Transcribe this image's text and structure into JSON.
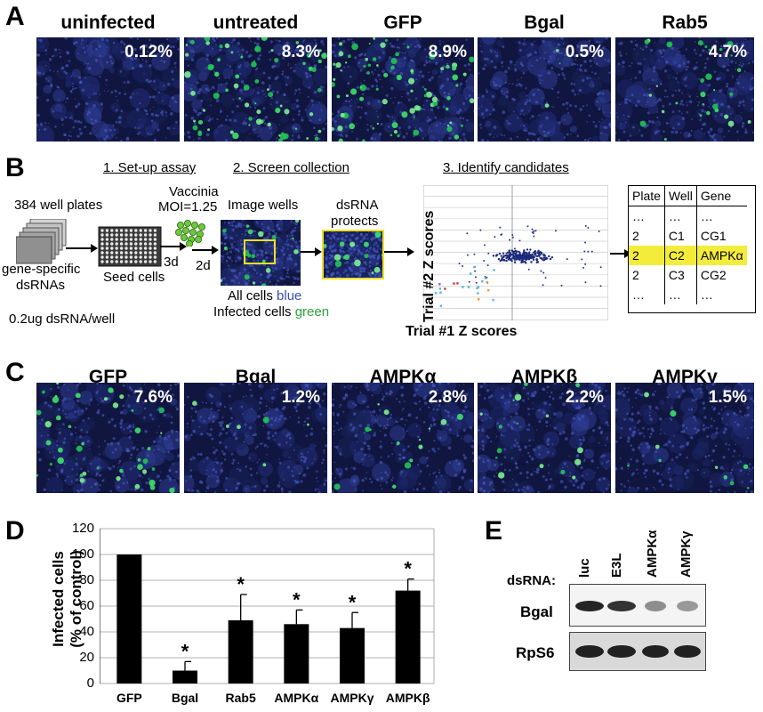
{
  "panels": {
    "A": {
      "label": "A",
      "tiles": [
        {
          "title": "uninfected",
          "pct": "0.12%"
        },
        {
          "title": "untreated",
          "pct": "8.3%"
        },
        {
          "title": "GFP",
          "pct": "8.9%"
        },
        {
          "title": "Bgal",
          "pct": "0.5%"
        },
        {
          "title": "Rab5",
          "pct": "4.7%"
        }
      ]
    },
    "B": {
      "label": "B",
      "step1": "1. Set-up assay",
      "step2": "2. Screen collection",
      "step3": "3. Identify candidates",
      "plates": "384 well plates",
      "gene_specific": "gene-specific",
      "dsrnas": "dsRNAs",
      "dose": "0.2ug dsRNA/well",
      "seed": "Seed cells",
      "vaccinia": "Vaccinia",
      "moi": "MOI=1.25",
      "d3": "3d",
      "d2": "2d",
      "image_wells": "Image wells",
      "all_cells_text": "All cells ",
      "blue_word": "blue",
      "infected_text": "Infected cells ",
      "green_word": "green",
      "dsrna": "dsRNA",
      "protects": "protects",
      "scatter_xlabel": "Trial #1 Z scores",
      "scatter_ylabel": "Trial #2 Z scores",
      "table": {
        "headers": [
          "Plate",
          "Well",
          "Gene"
        ],
        "rows": [
          [
            "…",
            "…",
            "…"
          ],
          [
            "2",
            "C1",
            "CG1"
          ],
          [
            "2",
            "C2",
            "AMPKα"
          ],
          [
            "2",
            "C3",
            "CG2"
          ],
          [
            "…",
            "…",
            "…"
          ]
        ]
      }
    },
    "C": {
      "label": "C",
      "tiles": [
        {
          "title": "GFP",
          "pct": "7.6%"
        },
        {
          "title": "Bgal",
          "pct": "1.2%"
        },
        {
          "title": "AMPKα",
          "pct": "2.8%"
        },
        {
          "title": "AMPKβ",
          "pct": "2.2%"
        },
        {
          "title": "AMPKγ",
          "pct": "1.5%"
        }
      ]
    },
    "D": {
      "label": "D",
      "ylabel_line1": "Infected cells",
      "ylabel_line2": "(% of control)",
      "star": "*"
    },
    "E": {
      "label": "E",
      "dsrna_label": "dsRNA:",
      "lanes": [
        "luc",
        "E3L",
        "AMPKα",
        "AMPKγ"
      ],
      "rows": [
        "Bgal",
        "RpS6"
      ]
    }
  },
  "chart_data": {
    "type": "bar",
    "categories": [
      "GFP",
      "Bgal",
      "Rab5",
      "AMPKα",
      "AMPKγ",
      "AMPKβ"
    ],
    "values": [
      100,
      10,
      49,
      46,
      43,
      72
    ],
    "errors": [
      0,
      7,
      20,
      11,
      12,
      9
    ],
    "significant": [
      false,
      true,
      true,
      true,
      true,
      true
    ],
    "ylabel": "Infected cells (% of control)",
    "ylim": [
      0,
      120
    ],
    "yticks": [
      0,
      20,
      40,
      60,
      80,
      100,
      120
    ],
    "grid": true,
    "bar_color": "#000000"
  }
}
